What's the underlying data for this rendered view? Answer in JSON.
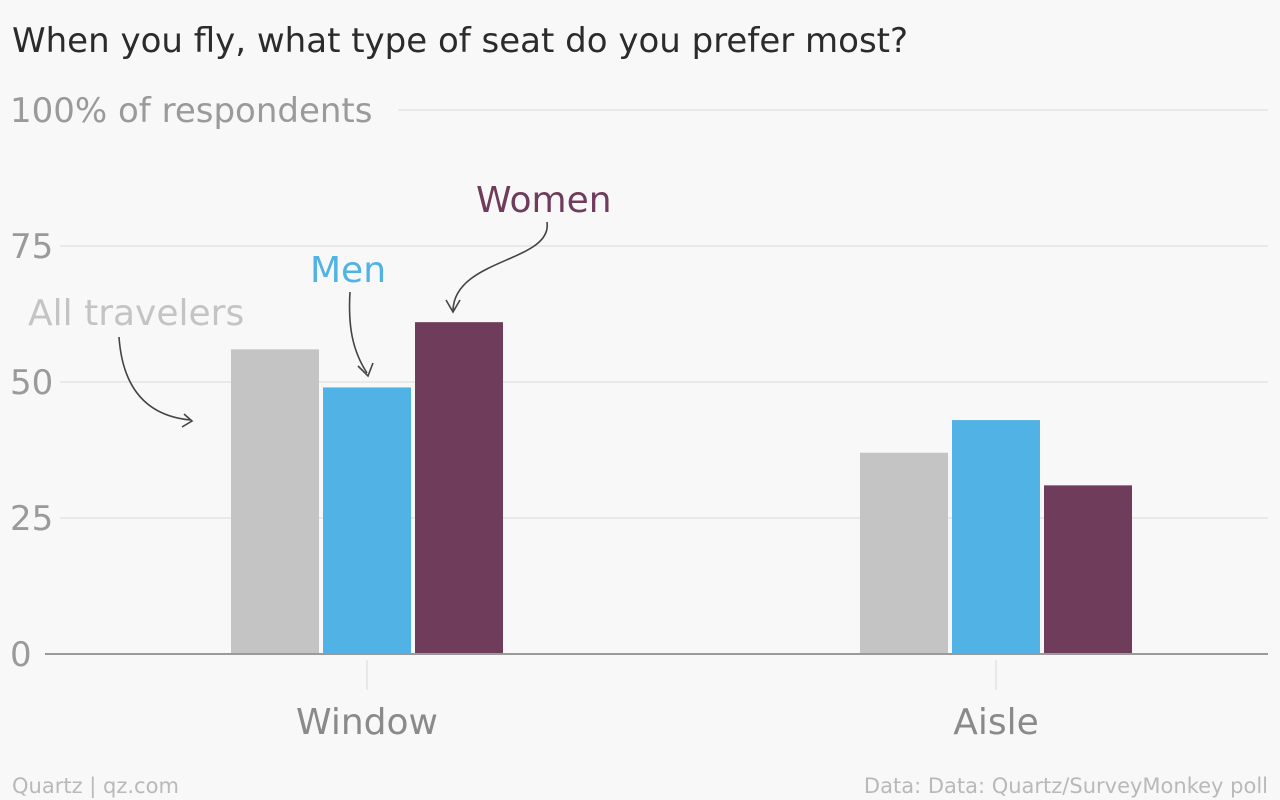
{
  "chart_data": {
    "type": "bar",
    "title": "When you fly, what type of seat do you prefer most?",
    "ylabel_suffix": "% of respondents",
    "yticks": [
      0,
      25,
      50,
      75,
      100
    ],
    "ylim": [
      0,
      100
    ],
    "grid": true,
    "categories": [
      "Window",
      "Aisle"
    ],
    "series": [
      {
        "name": "All travelers",
        "color": "#c4c4c4",
        "values": [
          56,
          37
        ]
      },
      {
        "name": "Men",
        "color": "#51b2e5",
        "values": [
          49,
          43
        ]
      },
      {
        "name": "Women",
        "color": "#703c5c",
        "values": [
          61,
          31
        ]
      }
    ]
  },
  "footer": {
    "source_left": "Quartz | qz.com",
    "source_right": "Data: Data: Quartz/SurveyMonkey poll"
  }
}
